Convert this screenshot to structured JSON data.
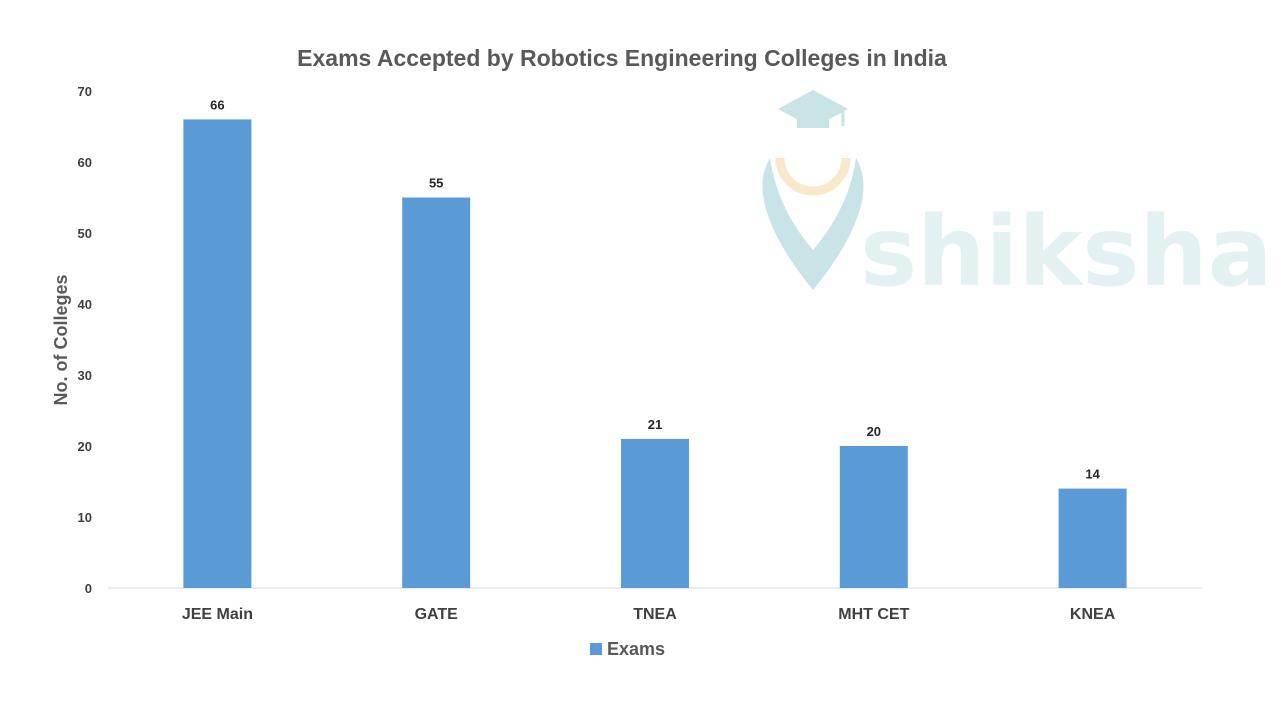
{
  "chart_data": {
    "type": "bar",
    "title": "Exams Accepted by Robotics Engineering Colleges in India",
    "xlabel": "",
    "ylabel": "No. of Colleges",
    "categories": [
      "JEE Main",
      "GATE",
      "TNEA",
      "MHT CET",
      "KNEA"
    ],
    "series": [
      {
        "name": "Exams",
        "values": [
          66,
          55,
          21,
          20,
          14
        ],
        "color": "#5b9bd5"
      }
    ],
    "ylim": [
      0,
      70
    ],
    "yticks": [
      0,
      10,
      20,
      30,
      40,
      50,
      60,
      70
    ],
    "grid": false,
    "legend_position": "bottom",
    "data_labels": true
  },
  "watermark": {
    "text": "shiksha",
    "icon": "graduation-cap-icon"
  }
}
